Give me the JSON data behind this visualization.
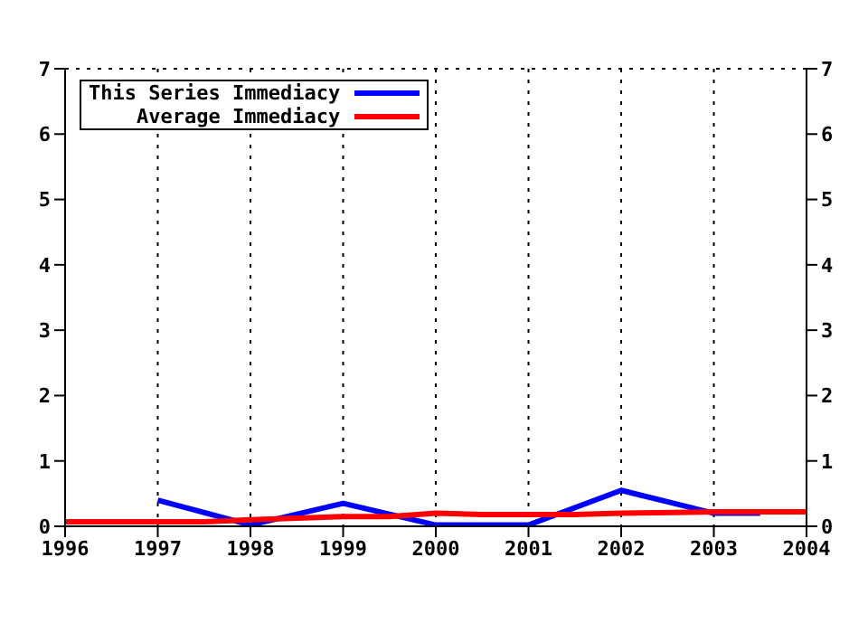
{
  "chart_data": {
    "type": "line",
    "series": [
      {
        "name": "This Series Immediacy",
        "color": "#0000ff",
        "x": [
          1997,
          1998,
          1999,
          2000,
          2001,
          2002,
          2003,
          2003.5
        ],
        "values": [
          0.4,
          0.02,
          0.35,
          0.02,
          0.02,
          0.55,
          0.2,
          0.2
        ]
      },
      {
        "name": "Average Immediacy",
        "color": "#ff0000",
        "x": [
          1996,
          1997.5,
          1998,
          1999,
          1999.5,
          2000,
          2000.5,
          2001.5,
          2002,
          2003,
          2004
        ],
        "values": [
          0.07,
          0.07,
          0.1,
          0.15,
          0.15,
          0.2,
          0.18,
          0.18,
          0.2,
          0.22,
          0.22
        ]
      }
    ],
    "xlim": [
      1996,
      2004
    ],
    "xticks": [
      1996,
      1997,
      1998,
      1999,
      2000,
      2001,
      2002,
      2003,
      2004
    ],
    "ylim": [
      0,
      7
    ],
    "yticks": [
      0,
      1,
      2,
      3,
      4,
      5,
      6,
      7
    ],
    "y2lim": [
      0,
      7
    ],
    "y2ticks": [
      0,
      1,
      2,
      3,
      4,
      5,
      6,
      7
    ],
    "grid": true,
    "legend": "top left",
    "marker": "none",
    "line_style": "solid"
  }
}
